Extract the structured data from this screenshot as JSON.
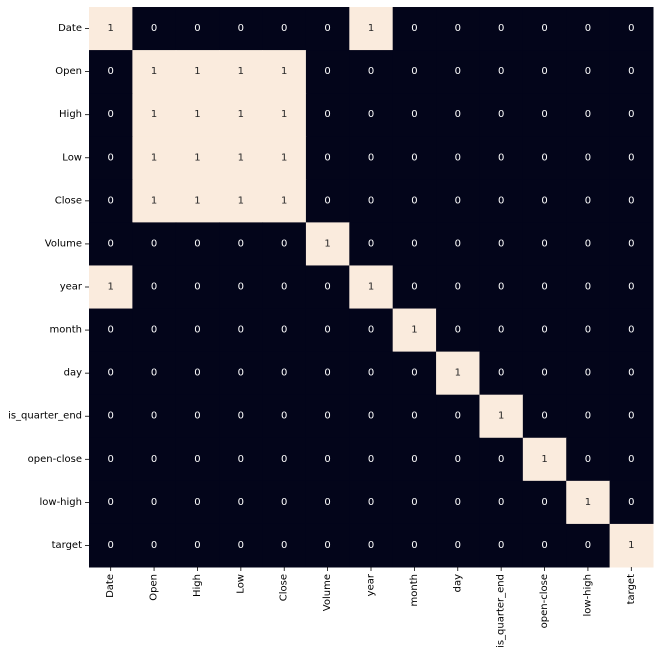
{
  "chart_data": {
    "type": "heatmap",
    "x": [
      "Date",
      "Open",
      "High",
      "Low",
      "Close",
      "Volume",
      "year",
      "month",
      "day",
      "is_quarter_end",
      "open-close",
      "low-high",
      "target"
    ],
    "y": [
      "Date",
      "Open",
      "High",
      "Low",
      "Close",
      "Volume",
      "year",
      "month",
      "day",
      "is_quarter_end",
      "open-close",
      "low-high",
      "target"
    ],
    "values": [
      [
        1,
        0,
        0,
        0,
        0,
        0,
        1,
        0,
        0,
        0,
        0,
        0,
        0
      ],
      [
        0,
        1,
        1,
        1,
        1,
        0,
        0,
        0,
        0,
        0,
        0,
        0,
        0
      ],
      [
        0,
        1,
        1,
        1,
        1,
        0,
        0,
        0,
        0,
        0,
        0,
        0,
        0
      ],
      [
        0,
        1,
        1,
        1,
        1,
        0,
        0,
        0,
        0,
        0,
        0,
        0,
        0
      ],
      [
        0,
        1,
        1,
        1,
        1,
        0,
        0,
        0,
        0,
        0,
        0,
        0,
        0
      ],
      [
        0,
        0,
        0,
        0,
        0,
        1,
        0,
        0,
        0,
        0,
        0,
        0,
        0
      ],
      [
        1,
        0,
        0,
        0,
        0,
        0,
        1,
        0,
        0,
        0,
        0,
        0,
        0
      ],
      [
        0,
        0,
        0,
        0,
        0,
        0,
        0,
        1,
        0,
        0,
        0,
        0,
        0
      ],
      [
        0,
        0,
        0,
        0,
        0,
        0,
        0,
        0,
        1,
        0,
        0,
        0,
        0
      ],
      [
        0,
        0,
        0,
        0,
        0,
        0,
        0,
        0,
        0,
        1,
        0,
        0,
        0
      ],
      [
        0,
        0,
        0,
        0,
        0,
        0,
        0,
        0,
        0,
        0,
        1,
        0,
        0
      ],
      [
        0,
        0,
        0,
        0,
        0,
        0,
        0,
        0,
        0,
        0,
        0,
        1,
        0
      ],
      [
        0,
        0,
        0,
        0,
        0,
        0,
        0,
        0,
        0,
        0,
        0,
        0,
        1
      ]
    ],
    "colors": [
      "#03051a",
      "#faebdd"
    ]
  }
}
